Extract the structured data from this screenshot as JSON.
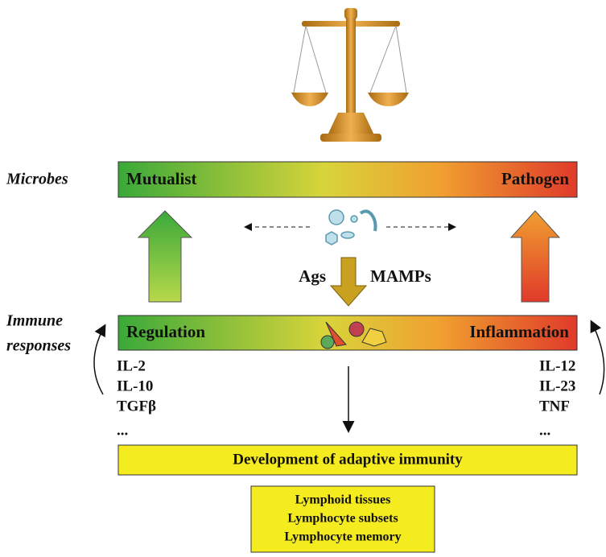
{
  "labels": {
    "microbes": "Microbes",
    "immune": [
      "Immune",
      "responses"
    ]
  },
  "microbe_bar": {
    "left": "Mutualist",
    "right": "Pathogen"
  },
  "stimuli": {
    "left": "Ags",
    "right": "MAMPs"
  },
  "immune_bar": {
    "left": "Regulation",
    "right": "Inflammation"
  },
  "cytokines_left": [
    "IL-2",
    "IL-10",
    "TGFβ",
    "..."
  ],
  "cytokines_right": [
    "IL-12",
    "IL-23",
    "TNF",
    "..."
  ],
  "adaptive_bar": "Development of adaptive immunity",
  "outcomes": [
    "Lymphoid tissues",
    "Lymphocyte subsets",
    "Lymphocyte memory"
  ]
}
